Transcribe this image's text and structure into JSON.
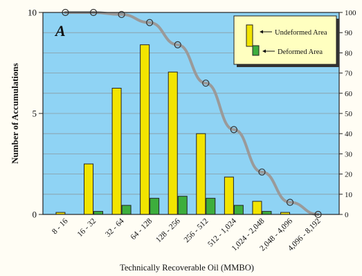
{
  "chart_data": {
    "type": "bar",
    "panel_letter": "A",
    "xlabel": "Technically Recoverable Oil (MMBO)",
    "ylabel": "Number of Accumulations",
    "ylim": [
      0,
      10
    ],
    "y2lim": [
      0,
      100
    ],
    "y_ticks": [
      "0",
      "5",
      "10"
    ],
    "y2_ticks": [
      "0",
      "10",
      "20",
      "30",
      "40",
      "50",
      "60",
      "70",
      "80",
      "90",
      "100"
    ],
    "grid": true,
    "legend_position": "top-right",
    "categories": [
      "8 - 16",
      "16 - 32",
      "32 - 64",
      "64 - 128",
      "128 - 256",
      "256 - 512",
      "512 - 1,024",
      "1,024 - 2,048",
      "2,048 - 4,096",
      "4,096 - 8,192"
    ],
    "series": [
      {
        "name": "Undeformed Area",
        "values": [
          0.1,
          2.5,
          6.25,
          8.4,
          7.05,
          4.0,
          1.85,
          0.65,
          0.1,
          0.0
        ],
        "color": "#f2e400"
      },
      {
        "name": "Deformed Area",
        "values": [
          0.0,
          0.15,
          0.45,
          0.8,
          0.9,
          0.8,
          0.45,
          0.15,
          0.0,
          0.0
        ],
        "color": "#3dae3d"
      }
    ],
    "cumulative_line": {
      "axis": "right",
      "x_positions": [
        0.5,
        1.5,
        2.5,
        3.5,
        4.5,
        5.5,
        6.5,
        7.5,
        8.5,
        9.5
      ],
      "values": [
        100,
        100,
        99,
        95,
        84,
        65,
        42,
        21,
        6,
        0
      ],
      "color": "#9a9a9a"
    },
    "colors": {
      "plot_background": "#8fd3f4",
      "page_background": "#fffdf4",
      "legend_background": "#ffffc0"
    }
  }
}
